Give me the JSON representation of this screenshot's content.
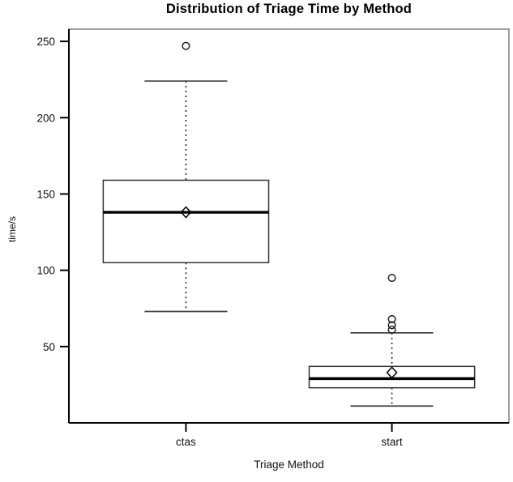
{
  "title": "Distribution of Triage Time by Method",
  "chart_data": {
    "type": "boxplot",
    "title": "Distribution of Triage Time by Method",
    "xlabel": "Triage Method",
    "ylabel": "time/s",
    "ylim": [
      0,
      258
    ],
    "yticks": [
      50,
      100,
      150,
      200,
      250
    ],
    "grid": false,
    "legend": "none",
    "categories": [
      "ctas",
      "start"
    ],
    "series": [
      {
        "name": "ctas",
        "whisker_low": 73,
        "q1": 105,
        "median": 138,
        "q3": 159,
        "whisker_high": 224,
        "mean": 138,
        "outliers": [
          247
        ]
      },
      {
        "name": "start",
        "whisker_low": 11,
        "q1": 23,
        "median": 29,
        "q3": 37,
        "whisker_high": 59,
        "mean": 33,
        "outliers": [
          61,
          64,
          68,
          95
        ]
      }
    ],
    "colors": {
      "background": "#ffffff",
      "border": "#777777",
      "axis": "#000000",
      "box_stroke": "#333333",
      "median": "#000000",
      "whisker_dash": "#222222",
      "whisker_cap": "#444444",
      "outlier": "#222222",
      "mean_marker": "#000000",
      "text": "#111111"
    }
  }
}
